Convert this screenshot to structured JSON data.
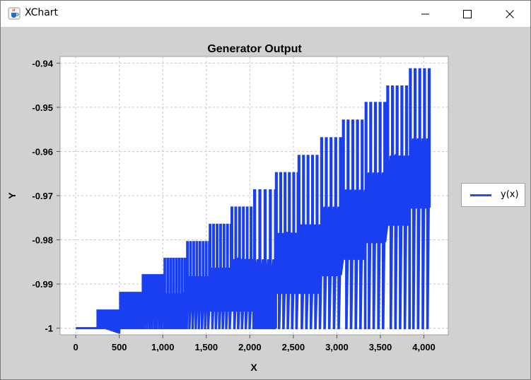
{
  "window": {
    "title": "XChart",
    "icon": "java-cup-icon",
    "controls": [
      "minimize-icon",
      "maximize-icon",
      "close-icon"
    ]
  },
  "colors": {
    "plot_background": "#ffffff",
    "chart_background": "#d1d1d1",
    "series": "#1a3ff0",
    "grid": "#c8c8c8"
  },
  "chart_data": {
    "type": "line",
    "title": "Generator Output",
    "xlabel": "X",
    "ylabel": "Y",
    "xlim": [
      -180,
      4280
    ],
    "ylim": [
      -1.0015,
      -0.9385
    ],
    "x_ticks": [
      0,
      500,
      1000,
      1500,
      2000,
      2500,
      3000,
      3500,
      4000
    ],
    "x_tick_labels": [
      "0",
      "500",
      "1,000",
      "1,500",
      "2,000",
      "2,500",
      "3,000",
      "3,500",
      "4,000"
    ],
    "y_ticks": [
      -1.0,
      -0.99,
      -0.98,
      -0.97,
      -0.96,
      -0.95,
      -0.94
    ],
    "y_tick_labels": [
      "-1",
      "-0.99",
      "-0.98",
      "-0.97",
      "-0.96",
      "-0.95",
      "-0.94"
    ],
    "grid": true,
    "legend_position": "right",
    "series": [
      {
        "name": "y(x)",
        "description": "oscillating signal between -1 and a rising envelope",
        "envelope": [
          {
            "x_start": 0,
            "x_end": 250,
            "peak": -1.0,
            "base": -1.0,
            "step": 50
          },
          {
            "x_start": 250,
            "x_end": 510,
            "peak": -0.996,
            "base": -1.0,
            "step": 20
          },
          {
            "x_start": 510,
            "x_end": 770,
            "peak": -0.992,
            "base": -0.996,
            "step": 24
          },
          {
            "x_start": 770,
            "x_end": 1020,
            "peak": -0.988,
            "base": -0.992,
            "step": 28
          },
          {
            "x_start": 1020,
            "x_end": 1280,
            "peak": -0.9843,
            "base": -1.0,
            "step": 33
          },
          {
            "x_start": 1280,
            "x_end": 1540,
            "peak": -0.9805,
            "base": -0.996,
            "step": 36
          },
          {
            "x_start": 1540,
            "x_end": 1790,
            "peak": -0.9766,
            "base": -0.996,
            "step": 40
          },
          {
            "x_start": 1790,
            "x_end": 2050,
            "peak": -0.9727,
            "base": -0.996,
            "step": 44
          },
          {
            "x_start": 2050,
            "x_end": 2300,
            "peak": -0.9688,
            "base": -1.0,
            "step": 60
          },
          {
            "x_start": 2300,
            "x_end": 2560,
            "peak": -0.9649,
            "base": -0.992,
            "step": 50
          },
          {
            "x_start": 2560,
            "x_end": 2820,
            "peak": -0.961,
            "base": -0.992,
            "step": 52
          },
          {
            "x_start": 2820,
            "x_end": 3070,
            "peak": -0.957,
            "base": -0.988,
            "step": 54
          },
          {
            "x_start": 3070,
            "x_end": 3330,
            "peak": -0.953,
            "base": -0.9843,
            "step": 54
          },
          {
            "x_start": 3330,
            "x_end": 3580,
            "peak": -0.949,
            "base": -0.9805,
            "step": 54
          },
          {
            "x_start": 3580,
            "x_end": 3840,
            "peak": -0.9453,
            "base": -0.9766,
            "step": 54
          },
          {
            "x_start": 3840,
            "x_end": 4080,
            "peak": -0.9414,
            "base": -0.9727,
            "step": 54
          }
        ]
      }
    ]
  }
}
